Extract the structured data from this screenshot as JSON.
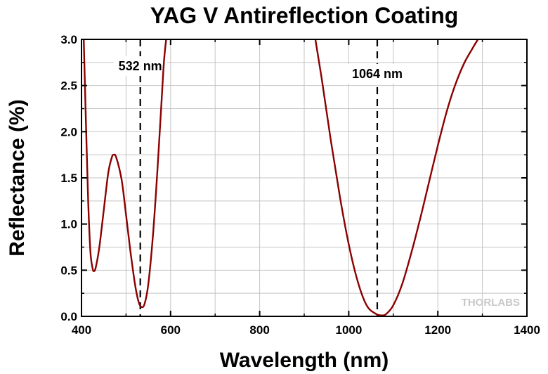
{
  "chart_data": {
    "type": "line",
    "title": "YAG V Antireflection Coating",
    "xlabel": "Wavelength (nm)",
    "ylabel": "Reflectance (%)",
    "xlim": [
      400,
      1400
    ],
    "ylim": [
      0,
      3.0
    ],
    "x_ticks": [
      "400",
      "600",
      "800",
      "1000",
      "1200",
      "1400"
    ],
    "y_ticks": [
      "0.0",
      "0.5",
      "1.0",
      "1.5",
      "2.0",
      "2.5",
      "3.0"
    ],
    "grid": true,
    "line_color": "#8b0000",
    "watermark": "THORLABS",
    "annotations": [
      {
        "label": "532 nm",
        "x": 532
      },
      {
        "label": "1064 nm",
        "x": 1064
      }
    ],
    "series": [
      {
        "segments": [
          [
            [
              405,
              3.0
            ],
            [
              410,
              2.1
            ],
            [
              415,
              1.25
            ],
            [
              420,
              0.7
            ],
            [
              425,
              0.52
            ],
            [
              428,
              0.49
            ],
            [
              432,
              0.53
            ],
            [
              440,
              0.75
            ],
            [
              450,
              1.15
            ],
            [
              460,
              1.55
            ],
            [
              468,
              1.72
            ],
            [
              472,
              1.75
            ],
            [
              478,
              1.72
            ],
            [
              490,
              1.48
            ],
            [
              500,
              1.1
            ],
            [
              510,
              0.7
            ],
            [
              520,
              0.35
            ],
            [
              528,
              0.16
            ],
            [
              535,
              0.1
            ],
            [
              542,
              0.14
            ],
            [
              550,
              0.35
            ],
            [
              560,
              0.85
            ],
            [
              570,
              1.55
            ],
            [
              580,
              2.35
            ],
            [
              585,
              2.75
            ],
            [
              590,
              3.0
            ]
          ],
          [
            [
              925,
              3.0
            ],
            [
              940,
              2.55
            ],
            [
              960,
              1.9
            ],
            [
              980,
              1.3
            ],
            [
              1000,
              0.78
            ],
            [
              1020,
              0.38
            ],
            [
              1040,
              0.12
            ],
            [
              1060,
              0.03
            ],
            [
              1075,
              0.01
            ],
            [
              1085,
              0.03
            ],
            [
              1100,
              0.12
            ],
            [
              1120,
              0.35
            ],
            [
              1140,
              0.68
            ],
            [
              1160,
              1.05
            ],
            [
              1180,
              1.45
            ],
            [
              1200,
              1.85
            ],
            [
              1220,
              2.22
            ],
            [
              1240,
              2.52
            ],
            [
              1260,
              2.75
            ],
            [
              1280,
              2.92
            ],
            [
              1290,
              3.0
            ]
          ]
        ]
      }
    ]
  }
}
